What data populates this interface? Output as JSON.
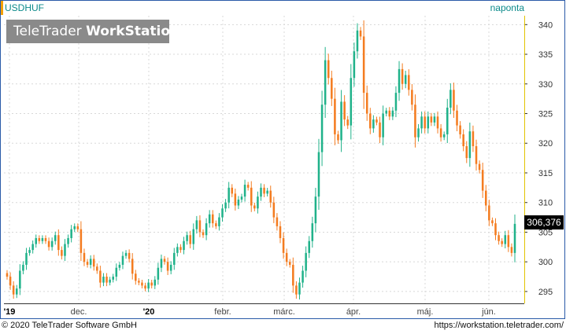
{
  "header": {
    "symbol": "USDHUF",
    "period": "naponta",
    "logo_regular": "TeleTrader ",
    "logo_bold": "WorkStation"
  },
  "last_price_label": "306,376",
  "footer": {
    "copyright": "© 2020 TeleTrader Software GmbH",
    "url": "https://workstation.teletrader.com/"
  },
  "colors": {
    "up": "#20b28a",
    "down": "#f47c20",
    "axis_teal": "#0b8a8a",
    "grid": "#d8d8d8",
    "frame": "#2a5aa8",
    "right_axis_border": "#e2c400"
  },
  "chart_data": {
    "type": "candlestick",
    "y_axis": {
      "side": "right",
      "min": 293,
      "max": 341.5,
      "ticks": [
        295,
        300,
        305,
        310,
        315,
        320,
        325,
        330,
        335,
        340
      ]
    },
    "x_labels": [
      "'19",
      "dec.",
      "'20",
      "febr.",
      "márc.",
      "ápr.",
      "máj.",
      "jún."
    ],
    "grid": true,
    "closes": [
      297.5,
      296,
      294.5,
      295.5,
      298.5,
      299.5,
      301.5,
      302,
      303,
      304,
      303.5,
      304,
      303.5,
      302.5,
      303.5,
      304.5,
      302,
      301,
      303,
      304,
      305.5,
      306,
      305.5,
      301.5,
      300,
      299.5,
      300.5,
      299.2,
      298.5,
      296.5,
      297.5,
      296.5,
      297,
      297.5,
      299,
      299.5,
      301,
      301.5,
      300.5,
      298,
      296.8,
      296.5,
      296,
      295.5,
      296.5,
      296,
      297,
      299,
      300.5,
      300,
      298.5,
      299.5,
      301.5,
      302.5,
      302,
      303.5,
      304.5,
      303,
      305.5,
      307,
      305,
      304.5,
      306.5,
      308,
      306.5,
      306,
      307.5,
      309,
      310,
      312.5,
      311.5,
      309.5,
      310.5,
      311,
      313,
      312.5,
      309.5,
      309,
      311,
      312.5,
      311.5,
      312,
      310,
      307.5,
      306,
      304,
      301.5,
      300,
      299.5,
      296,
      294.5,
      296.5,
      298.5,
      301.5,
      303.5,
      306.5,
      311,
      318.5,
      326.5,
      334,
      331,
      327.5,
      321.5,
      320.5,
      327,
      324,
      323,
      331,
      335.5,
      339,
      338,
      328.5,
      325,
      322.5,
      324,
      323.5,
      321,
      325,
      325.5,
      324.5,
      325.5,
      328.5,
      332.5,
      330,
      331.5,
      329,
      326.5,
      321,
      322.5,
      324.5,
      322.5,
      324.5,
      323.5,
      324.5,
      322.5,
      321,
      321.5,
      326,
      329,
      325.5,
      323,
      321.5,
      319.5,
      317.5,
      322,
      319.5,
      316.5,
      315.5,
      312,
      309.5,
      307,
      306.5,
      304.5,
      303.5,
      303,
      304.5,
      302.5,
      301.5,
      306.4
    ]
  }
}
